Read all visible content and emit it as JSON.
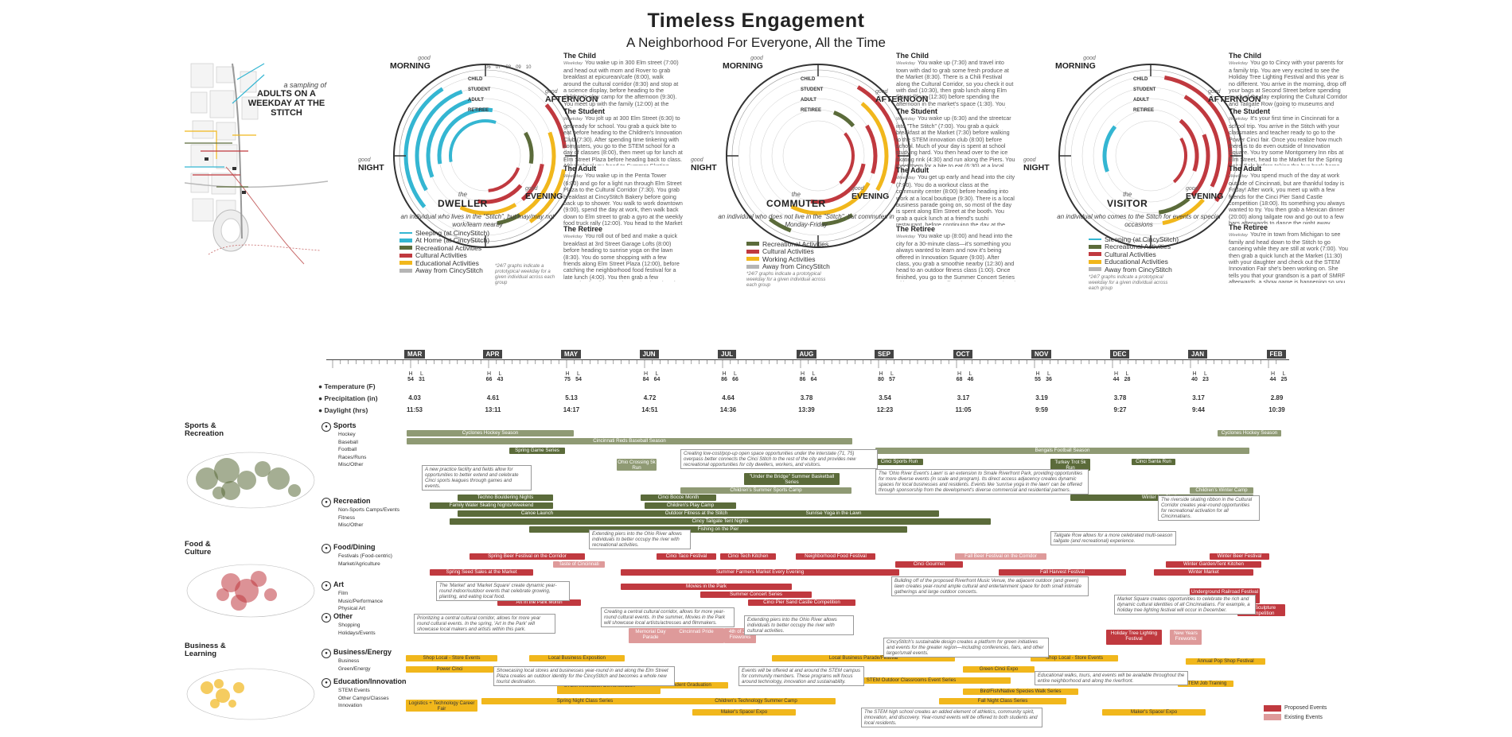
{
  "header": {
    "title": "Timeless Engagement",
    "subtitle": "A Neighborhood For Everyone, All the Time"
  },
  "map": {
    "caption_small": "a sampling of",
    "caption_big": "ADULTS ON A WEEKDAY AT THE STITCH"
  },
  "personas": [
    {
      "the": "the",
      "name": "DWELLER",
      "desc": "an individual who lives in the \"Stitch\", but may/may not work/learn nearby",
      "legend": [
        "Sleeping (at CincyStitch)",
        "At Home (at CincyStitch)",
        "Recreational Activities",
        "Cultural Activities",
        "Educational Activities",
        "Away from CincyStitch"
      ],
      "note": "*24/7 graphs indicate a prototypical weekday for a given individual across each group",
      "stories": [
        {
          "title": "The Child",
          "role": "Weekday",
          "text": "You wake up in 300 Elm street (7:00) and head out with mom and Rover to grab breakfast at epicurean/cafe (8:00), walk around the cultural corridor (8:30) and stop at a science display, before heading to the children's play camp for the afternoon (9:30). You meet up with the family (12:00) at the Tailgate Plaza for lunch and play before heading to the park by the river to watch the tides before bed."
        },
        {
          "title": "The Student",
          "role": "Weekday",
          "text": "You jolt up at 300 Elm Street (6:30) to get ready for school. You grab a quick bite to eat before heading to the Children's Innovation Club (7:30). After spending time tinkering with computers, you go to the STEM school for a day of classes (8:00), then meet up for lunch at Elm Street Plaza before heading back to class. After school you head to Summer Skating Night (7:00), then head back home."
        },
        {
          "title": "The Adult",
          "role": "Weekday",
          "text": "You wake up in the Penta Tower (6:00) and go for a light run through Elm Street Plaza to the Cultural Corridor (7:30). You grab breakfast at CincyStitch Bakery before going back up to shower. You walk to work downtown (9:00), spend the day at work, then walk back down to Elm street to grab a gyro at the weekly food truck rally (12:00). You head to the Market after work (5:00), make dinner and then grab a quick drink on Tailgate Row (9:00) with friends before heading to bed."
        },
        {
          "title": "The Retiree",
          "role": "Weekday",
          "text": "You roll out of bed and make a quick breakfast at 3rd Street Garage Lofts (8:00) before heading to sunrise yoga on the lawn (8:30). You do some shopping with a few friends along Elm Street Plaza (12:00), before catching the neighborhood food festival for a late lunch (4:00). You then grab a few groceries for dinner at the market (5:00) and head home to make dinner with the family."
        }
      ]
    },
    {
      "the": "the",
      "name": "COMMUTER",
      "desc": "an individual who does not live in the \"Stitch\", but commutes in Monday-Friday",
      "legend": [
        "Recreational Activities",
        "Cultural Activities",
        "Working Activities",
        "Away from CincyStitch"
      ],
      "note": "*24/7 graphs indicate a prototypical weekday for a given individual across each group",
      "stories": [
        {
          "title": "The Child",
          "role": "Weekday",
          "text": "You wake up (7:30) and travel into town with dad to grab some fresh produce at the Market (8:30). There is a Chili Festival along the Cultural Corridor, so you check it out with dad (10:30), then grab lunch along Elm Street Plaza (12:30) before spending the afternoon in the market's space (1:30). You meet the family (3:00) for movies in the park (8:00) until it gets dark out."
        },
        {
          "title": "The Student",
          "role": "Weekday",
          "text": "You wake up (6:30) and the streetcar into \"The Stitch\" (7:00). You grab a quick breakfast at the Market (7:30) before walking to the STEM innovation club (8:00) before school. Much of your day is spent at school studying hard. You then head over to the ice skating rink (4:30) and run along the Piers. You meet them for a bite to eat (6:30) at a local restaurant before heading back home to do homework."
        },
        {
          "title": "The Adult",
          "role": "Weekday",
          "text": "You get up early and head into the city (7:00). You do a workout class at the community center (8:00) before heading into work at a local boutique (9:30). There is a local business parade going on, so most of the day is spent along Elm Street at the booth. You grab a quick lunch at a friend's sushi restaurant, before continuing the day at the booth. After work, you head to the fall harvest festival at the Market for a chili cook-off with a few friends before heading home."
        },
        {
          "title": "The Retiree",
          "role": "Weekday",
          "text": "You wake up (8:00) and head into the city for a 30-minute class—it's something you always wanted to learn and now it's being offered in Innovation Square (9:00). After class, you grab a smoothie nearby (12:30) and head to an outdoor fitness class (1:00). Once finished, you go to the Summer Concert Series with your son gets off work. Together, you head to the last tailgate in the area for some food."
        }
      ]
    },
    {
      "the": "the",
      "name": "VISITOR",
      "desc": "an individual who comes to the Stitch for events or special occasions",
      "legend": [
        "Sleeping (at CincyStitch)",
        "Recreational Activities",
        "Cultural Activities",
        "Educational Activities",
        "Away from CincyStitch"
      ],
      "note": "*24/7 graphs indicate a prototypical weekday for a given individual across each group",
      "stories": [
        {
          "title": "The Child",
          "role": "Weekday",
          "text": "You go to Cincy with your parents for a family trip. You are very excited to see the Holiday Tree Lighting Festival and this year is no different. You arrive in the morning, drop off your bags at Second Street before spending much of the day exploring the Cultural Corridor and Tailgate Row (going to museums and going on the Ferris Wheel)! Once night hits, you get to see the lights in all their glory!"
        },
        {
          "title": "The Student",
          "role": "Weekday",
          "text": "It's your first time in Cincinnati for a school trip. You arrive in the Stitch with your classmates and teacher ready to go to the Power Cinci fair. Once you realize how much there is to do even outside of Innovation Square. You try some Montgomery Inn ribs at Elm Street, head to the Market for the Spring Seed Sale before taking the bus back home."
        },
        {
          "title": "The Adult",
          "role": "Weekday",
          "text": "You spend much of the day at work outside of Cincinnati, but are thankful today is Friday! After work, you meet up with a few friends for the Cinci Pier Sand Castle competition (18:00). Its something you always wanted to try. You then grab a Mexican dinner (20:00) along tailgate row and go out to a few bars afterwards to dance the night away (22:00)."
        },
        {
          "title": "The Retiree",
          "role": "Weekday",
          "text": "You're in town from Michigan to see family and head down to the Stitch to go canoeing while they are still at work (7:00). You then grab a quick lunch at the Market (11:30) with your daughter and check out the STEM Innovation Fair she's been working on. She tells you that your grandson is a part of SMRF afterwards, a show game is happening so you spend the afternoon/evening at tent night before taking the bus back to The Music Hotel for the night."
        }
      ]
    }
  ],
  "times_of_day": {
    "good": "good",
    "morning": "MORNING",
    "afternoon": "AFTERNOON",
    "evening": "EVENING",
    "night": "NIGHT"
  },
  "rings": {
    "child": "CHILD",
    "student": "STUDENT",
    "adult": "ADULT",
    "retiree": "RETIREE"
  },
  "clock_hours": [
    "06",
    "07",
    "08",
    "09",
    "10",
    "11",
    "12"
  ],
  "months": [
    {
      "name": "MAR",
      "h": "54",
      "l": "31",
      "precip": "4.03",
      "daylight": "11:53"
    },
    {
      "name": "APR",
      "h": "66",
      "l": "43",
      "precip": "4.61",
      "daylight": "13:11"
    },
    {
      "name": "MAY",
      "h": "75",
      "l": "54",
      "precip": "5.13",
      "daylight": "14:17"
    },
    {
      "name": "JUN",
      "h": "84",
      "l": "64",
      "precip": "4.72",
      "daylight": "14:51"
    },
    {
      "name": "JUL",
      "h": "86",
      "l": "66",
      "precip": "4.64",
      "daylight": "14:36"
    },
    {
      "name": "AUG",
      "h": "86",
      "l": "64",
      "precip": "3.78",
      "daylight": "13:39"
    },
    {
      "name": "SEP",
      "h": "80",
      "l": "57",
      "precip": "3.54",
      "daylight": "12:23"
    },
    {
      "name": "OCT",
      "h": "68",
      "l": "46",
      "precip": "3.17",
      "daylight": "11:05"
    },
    {
      "name": "NOV",
      "h": "55",
      "l": "36",
      "precip": "3.19",
      "daylight": "9:59"
    },
    {
      "name": "DEC",
      "h": "44",
      "l": "28",
      "precip": "3.78",
      "daylight": "9:27"
    },
    {
      "name": "JAN",
      "h": "40",
      "l": "23",
      "precip": "3.17",
      "daylight": "9:44"
    },
    {
      "name": "FEB",
      "h": "44",
      "l": "25",
      "precip": "2.89",
      "daylight": "10:39"
    }
  ],
  "climate_labels": {
    "temp": "Temperature (F)",
    "precip": "Precipitation (in)",
    "daylight": "Daylight (hrs)",
    "h": "H",
    "l": "L"
  },
  "sections": [
    {
      "title": "Sports & Recreation",
      "cats": [
        {
          "name": "Sports",
          "subs": [
            "Hockey",
            "Baseball",
            "Football",
            "Races/Runs",
            "Misc/Other"
          ]
        },
        {
          "name": "Recreation",
          "subs": [
            "Non-Sports Camps/Events",
            "Fitness",
            "Misc/Other"
          ]
        }
      ]
    },
    {
      "title": "Food & Culture",
      "cats": [
        {
          "name": "Food/Dining",
          "subs": [
            "Festivals (Food-centric)",
            "Market/Agriculture"
          ]
        },
        {
          "name": "Art",
          "subs": [
            "Film",
            "Music/Performance",
            "Physical Art"
          ]
        },
        {
          "name": "Other",
          "subs": [
            "Shopping",
            "Holidays/Events"
          ]
        }
      ]
    },
    {
      "title": "Business & Learning",
      "cats": [
        {
          "name": "Business/Energy",
          "subs": [
            "Business",
            "Green/Energy"
          ]
        },
        {
          "name": "Education/Innovation",
          "subs": [
            "STEM Events",
            "Other Camps/Classes",
            "Innovation"
          ]
        }
      ]
    }
  ],
  "events": [
    {
      "label": "Cyclones Hockey Season",
      "kind": "s-exist"
    },
    {
      "label": "Cyclones Hockey Season",
      "kind": "s-exist"
    },
    {
      "label": "Cincinnati Reds Baseball Season",
      "kind": "s-exist"
    },
    {
      "label": "Bengals Football Season",
      "kind": "s-exist"
    },
    {
      "label": "Spring Game Series",
      "kind": "s-prop"
    },
    {
      "label": "Ohio Crossing 5k Run",
      "kind": "s-exist"
    },
    {
      "label": "Cinci Sports Run",
      "kind": "s-prop"
    },
    {
      "label": "Turkey Trot 5k Run",
      "kind": "s-prop"
    },
    {
      "label": "Cinci Santa Run",
      "kind": "s-prop"
    },
    {
      "label": "\"Under the Bridge\" Summer Basketball Series",
      "kind": "s-prop"
    },
    {
      "label": "Children's Summer Sports Camp",
      "kind": "s-exist"
    },
    {
      "label": "Children's Winter Camp",
      "kind": "s-exist"
    },
    {
      "label": "Techno Bouldering Nights",
      "kind": "s-prop"
    },
    {
      "label": "Cinci Bocce Month",
      "kind": "s-prop"
    },
    {
      "label": "Winter Ice Skating",
      "kind": "s-prop"
    },
    {
      "label": "Family Water Skating Nights/Weekend",
      "kind": "s-prop"
    },
    {
      "label": "Children's Play Camp",
      "kind": "s-prop"
    },
    {
      "label": "Canoe Launch",
      "kind": "s-prop"
    },
    {
      "label": "Outdoor Fitness at the Stitch",
      "kind": "s-prop"
    },
    {
      "label": "Sunrise Yoga in the Lawn",
      "kind": "s-prop"
    },
    {
      "label": "Cincy Tailgate Tent Nights",
      "kind": "s-prop"
    },
    {
      "label": "Fishing on the Pier",
      "kind": "s-prop"
    },
    {
      "label": "Spring Beer Festival on the Corridor",
      "kind": "f-prop"
    },
    {
      "label": "Taste of Cincinnati",
      "kind": "f-exist"
    },
    {
      "label": "Cinci Taco Festival",
      "kind": "f-prop"
    },
    {
      "label": "Cinci Tech Kitchen",
      "kind": "f-prop"
    },
    {
      "label": "Neighborhood Food Festival",
      "kind": "f-prop"
    },
    {
      "label": "Fall Beer Festival on the Corridor",
      "kind": "f-exist"
    },
    {
      "label": "Winter Beer Festival",
      "kind": "f-prop"
    },
    {
      "label": "Cinci Gourmet",
      "kind": "f-prop"
    },
    {
      "label": "Winter Garden/Tent Kitchen",
      "kind": "f-prop"
    },
    {
      "label": "Spring Seed Sales at the Market",
      "kind": "f-prop"
    },
    {
      "label": "Summer Farmers Market Every Evening",
      "kind": "f-prop"
    },
    {
      "label": "Fall Harvest Festival",
      "kind": "f-prop"
    },
    {
      "label": "Winter Market",
      "kind": "f-prop"
    },
    {
      "label": "Movies in the Park",
      "kind": "f-prop"
    },
    {
      "label": "Summer Concert Series",
      "kind": "f-prop"
    },
    {
      "label": "Cinci Pier Sand Castle Competition",
      "kind": "f-prop"
    },
    {
      "label": "Art in the Park Month",
      "kind": "f-prop"
    },
    {
      "label": "Underground Railroad Festival + Black History Month",
      "kind": "f-prop"
    },
    {
      "label": "Ice Sculpture Competition",
      "kind": "f-prop"
    },
    {
      "label": "Memorial Day Parade",
      "kind": "f-exist"
    },
    {
      "label": "Cincinnati Pride",
      "kind": "f-exist"
    },
    {
      "label": "4th of July Fireworks",
      "kind": "f-exist"
    },
    {
      "label": "Holiday Tree Lighting Festival",
      "kind": "f-prop"
    },
    {
      "label": "New Years Fireworks",
      "kind": "f-exist"
    },
    {
      "label": "Shop Local - Store Events",
      "kind": "b-prop"
    },
    {
      "label": "Local Business Exposition",
      "kind": "b-prop"
    },
    {
      "label": "Local Business Parade/Festival",
      "kind": "b-prop"
    },
    {
      "label": "Shop Local - Store Events",
      "kind": "b-prop"
    },
    {
      "label": "Annual Pop Shop Festival",
      "kind": "b-prop"
    },
    {
      "label": "Power Cinci",
      "kind": "b-prop"
    },
    {
      "label": "Green Cinci Expo",
      "kind": "b-prop"
    },
    {
      "label": "STEM Innovation Demonstration Festival",
      "kind": "b-prop"
    },
    {
      "label": "STEM Student Graduation",
      "kind": "b-prop"
    },
    {
      "label": "STEM Outdoor Classrooms Event Series",
      "kind": "b-prop"
    },
    {
      "label": "Bird/Fish/Native Species Walk Series",
      "kind": "b-prop"
    },
    {
      "label": "STEM Job Training",
      "kind": "b-prop"
    },
    {
      "label": "Logistics + Technology Career Fair",
      "kind": "b-prop"
    },
    {
      "label": "Spring Night Class Series",
      "kind": "b-prop"
    },
    {
      "label": "Children's Technology Summer Camp",
      "kind": "b-prop"
    },
    {
      "label": "Fall Night Class Series",
      "kind": "b-prop"
    },
    {
      "label": "Maker's Space/ Expo",
      "kind": "b-prop"
    },
    {
      "label": "Maker's Space/ Expo",
      "kind": "b-prop"
    }
  ],
  "callouts": [
    "A new practice facility and fields allow for opportunities to better extend and celebrate Cinci sports leagues through games and events.",
    "Creating low-cost/pop-up open space opportunities under the interstate (71, 75) overpass better connects the Cinci Stitch to the rest of the city and provides new recreational opportunities for city dwellers, workers, and visitors.",
    "The 'Ohio River Event's Lawn' is an extension to Smale Riverfront Park, providing opportunities for more diverse events (in scale and program). Its direct access adjacency creates dynamic spaces for local businesses and residents. Events like 'sunrise yoga in the lawn' can be offered through sponsorship from the development's diverse commercial and residential partners.",
    "The riverside skating ribbon in the Cultural Corridor creates year-round opportunities for recreational activation for all Cincinnatians.",
    "Tailgate Row allows for a more celebrated multi-season tailgate (and recreational) experience.",
    "Extending piers into the Ohio River allows individuals to better occupy the river with recreational activities.",
    "The 'Market' and 'Market Square' create dynamic year-round indoor/outdoor events that celebrate growing, planting, and eating local food.",
    "Building off of the proposed Riverfront Music Venue, the adjacent outdoor (and green) lawn creates year-round ample cultural and entertainment space for both small intimate gatherings and large outdoor concerts.",
    "Market Square creates opportunities to celebrate the rich and dynamic cultural identities of all Cincinnatians. For example, a holiday tree lighting festival will occur in December.",
    "Creating a central cultural corridor, allows for more year-round cultural events. In the summer, Movies in the Park will showcase local artists/actresses and filmmakers.",
    "Extending piers into the Ohio River allows individuals to better occupy the river with cultural activities.",
    "Prioritizing a central cultural corridor, allows for more year round cultural events. In the spring, 'Art in the Park' will showcase local makers and artists within this park.",
    "CincyStitch's sustainable design creates a platform for green initiatives and events for the greater region—including conferences, fairs, and other larger/small events.",
    "Showcasing local stores and businesses year-round in and along the Elm Street Plaza creates an outdoor identity for the CincyStitch and becomes a whole new tourist destination.",
    "Events will be offered at and around the STEM campus for community members. These programs will focus around technology, innovation and sustainability.",
    "Educational walks, tours, and events will be available throughout the entire neighborhood and along the riverfront.",
    "The STEM high school creates an added element of athletics, community spirit, innovation, and discovery. Year-round events will be offered to both students and local residents."
  ],
  "event_legend": {
    "proposed": "Proposed Events",
    "existing": "Existing Events"
  },
  "colors": {
    "olive": "#5b6b3a",
    "olive_light": "#8f9a74",
    "red": "#c0393f",
    "red_light": "#de9a9a",
    "yellow": "#f1b71c",
    "cyan": "#34b6d2",
    "gray": "#b5b5b5",
    "dark": "#333333"
  }
}
